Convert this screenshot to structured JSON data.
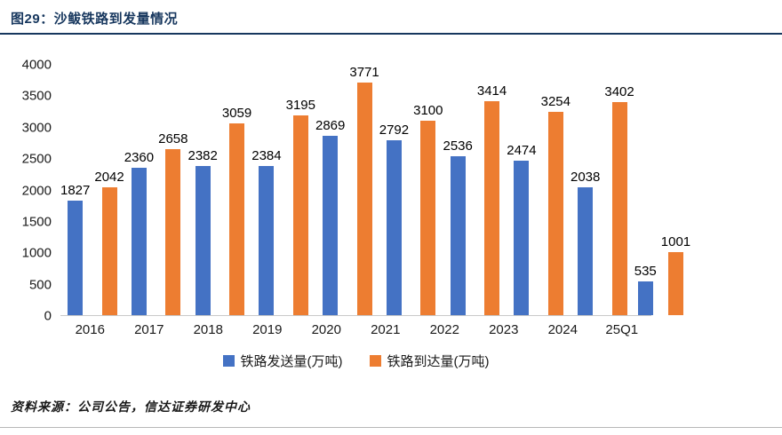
{
  "header": {
    "title": "图29：沙鲅铁路到发量情况"
  },
  "footer": {
    "source": "资料来源：公司公告，信达证券研发中心"
  },
  "colors": {
    "title_navy": "#17375E",
    "series_blue": "#4472C4",
    "series_orange": "#ED7D31"
  },
  "chart_data": {
    "type": "bar",
    "title": "图29：沙鲅铁路到发量情况",
    "categories": [
      "2016",
      "2017",
      "2018",
      "2019",
      "2020",
      "2021",
      "2022",
      "2023",
      "2024",
      "25Q1"
    ],
    "series": [
      {
        "name": "铁路发送量(万吨)",
        "color": "#4472C4",
        "values": [
          1827,
          2360,
          2382,
          2384,
          2869,
          2792,
          2536,
          2474,
          2038,
          535
        ]
      },
      {
        "name": "铁路到达量(万吨)",
        "color": "#ED7D31",
        "values": [
          2042,
          2658,
          3059,
          3195,
          3771,
          3100,
          3414,
          3254,
          3402,
          1001
        ]
      }
    ],
    "xlabel": "",
    "ylabel": "",
    "ylim": [
      0,
      4000
    ],
    "ytick_step": 500,
    "grid": false,
    "legend_position": "bottom",
    "data_labels": true
  }
}
